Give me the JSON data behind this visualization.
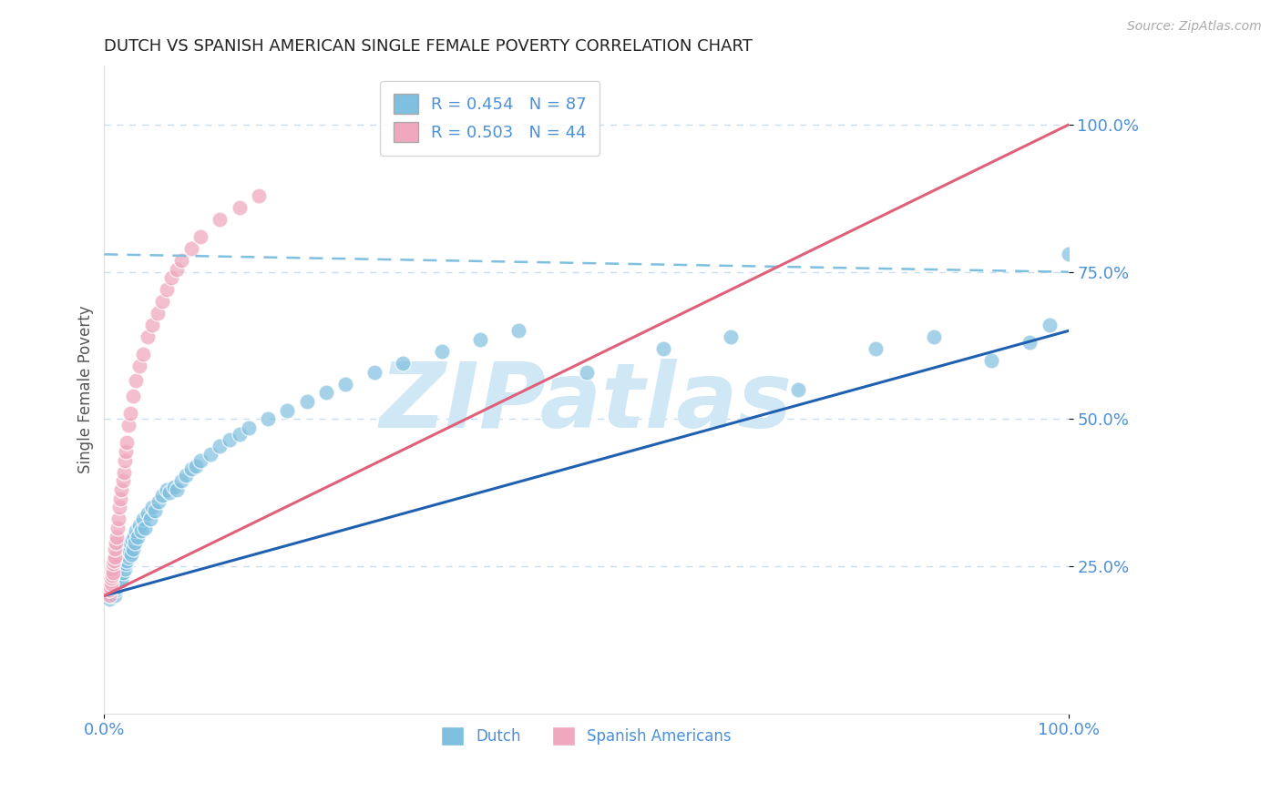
{
  "title": "DUTCH VS SPANISH AMERICAN SINGLE FEMALE POVERTY CORRELATION CHART",
  "source": "Source: ZipAtlas.com",
  "ylabel": "Single Female Poverty",
  "dutch_R": 0.454,
  "dutch_N": 87,
  "spanish_R": 0.503,
  "spanish_N": 44,
  "blue_color": "#7fbfdf",
  "pink_color": "#f0a8be",
  "blue_line_color": "#2060b0",
  "pink_line_color": "#e0607a",
  "dashed_line_color": "#7fbfdf",
  "title_color": "#222222",
  "axis_label_color": "#4a90d9",
  "grid_color": "#c8ddf0",
  "background_color": "#ffffff",
  "watermark": "ZIPatlas",
  "watermark_color": "#d0e8f5",
  "dutch_x": [
    0.005,
    0.007,
    0.008,
    0.009,
    0.01,
    0.01,
    0.011,
    0.011,
    0.012,
    0.012,
    0.013,
    0.013,
    0.014,
    0.014,
    0.015,
    0.015,
    0.016,
    0.016,
    0.017,
    0.017,
    0.018,
    0.018,
    0.019,
    0.019,
    0.02,
    0.02,
    0.021,
    0.021,
    0.022,
    0.022,
    0.023,
    0.024,
    0.025,
    0.025,
    0.026,
    0.027,
    0.028,
    0.029,
    0.03,
    0.031,
    0.032,
    0.033,
    0.035,
    0.036,
    0.038,
    0.04,
    0.042,
    0.045,
    0.048,
    0.05,
    0.053,
    0.056,
    0.06,
    0.065,
    0.068,
    0.072,
    0.075,
    0.08,
    0.085,
    0.09,
    0.095,
    0.1,
    0.11,
    0.12,
    0.13,
    0.14,
    0.15,
    0.17,
    0.19,
    0.21,
    0.23,
    0.25,
    0.28,
    0.31,
    0.35,
    0.39,
    0.43,
    0.5,
    0.58,
    0.65,
    0.72,
    0.8,
    0.86,
    0.92,
    0.96,
    0.98,
    1.0
  ],
  "dutch_y": [
    0.195,
    0.2,
    0.21,
    0.205,
    0.215,
    0.22,
    0.2,
    0.225,
    0.21,
    0.23,
    0.215,
    0.235,
    0.22,
    0.24,
    0.225,
    0.245,
    0.22,
    0.25,
    0.235,
    0.255,
    0.225,
    0.26,
    0.24,
    0.265,
    0.25,
    0.27,
    0.245,
    0.275,
    0.255,
    0.28,
    0.26,
    0.27,
    0.265,
    0.285,
    0.275,
    0.29,
    0.27,
    0.295,
    0.28,
    0.3,
    0.29,
    0.31,
    0.3,
    0.32,
    0.31,
    0.33,
    0.315,
    0.34,
    0.33,
    0.35,
    0.345,
    0.36,
    0.37,
    0.38,
    0.375,
    0.385,
    0.38,
    0.395,
    0.405,
    0.415,
    0.42,
    0.43,
    0.44,
    0.455,
    0.465,
    0.475,
    0.485,
    0.5,
    0.515,
    0.53,
    0.545,
    0.56,
    0.58,
    0.595,
    0.615,
    0.635,
    0.65,
    0.58,
    0.62,
    0.64,
    0.55,
    0.62,
    0.64,
    0.6,
    0.63,
    0.66,
    0.78
  ],
  "spanish_x": [
    0.005,
    0.005,
    0.006,
    0.006,
    0.007,
    0.007,
    0.008,
    0.008,
    0.009,
    0.009,
    0.01,
    0.011,
    0.011,
    0.012,
    0.013,
    0.014,
    0.015,
    0.016,
    0.017,
    0.018,
    0.019,
    0.02,
    0.021,
    0.022,
    0.023,
    0.025,
    0.027,
    0.03,
    0.033,
    0.036,
    0.04,
    0.045,
    0.05,
    0.055,
    0.06,
    0.065,
    0.07,
    0.075,
    0.08,
    0.09,
    0.1,
    0.12,
    0.14,
    0.16
  ],
  "spanish_y": [
    0.2,
    0.21,
    0.215,
    0.225,
    0.22,
    0.23,
    0.235,
    0.245,
    0.24,
    0.255,
    0.26,
    0.265,
    0.28,
    0.29,
    0.3,
    0.315,
    0.33,
    0.35,
    0.365,
    0.38,
    0.395,
    0.41,
    0.43,
    0.445,
    0.46,
    0.49,
    0.51,
    0.54,
    0.565,
    0.59,
    0.61,
    0.64,
    0.66,
    0.68,
    0.7,
    0.72,
    0.74,
    0.755,
    0.77,
    0.79,
    0.81,
    0.84,
    0.86,
    0.88
  ],
  "dutch_line_x0": 0.0,
  "dutch_line_y0": 0.2,
  "dutch_line_x1": 1.0,
  "dutch_line_y1": 0.65,
  "spanish_line_x0": 0.0,
  "spanish_line_y0": 0.2,
  "spanish_line_x1": 1.0,
  "spanish_line_y1": 1.0,
  "dashed_line_x0": 0.0,
  "dashed_line_y0": 0.78,
  "dashed_line_x1": 1.0,
  "dashed_line_y1": 0.75,
  "xlim": [
    0.0,
    1.0
  ],
  "ylim": [
    0.0,
    1.1
  ],
  "yticks": [
    0.25,
    0.5,
    0.75,
    1.0
  ],
  "ytick_labels": [
    "25.0%",
    "50.0%",
    "75.0%",
    "100.0%"
  ],
  "xtick_labels": [
    "0.0%",
    "100.0%"
  ]
}
